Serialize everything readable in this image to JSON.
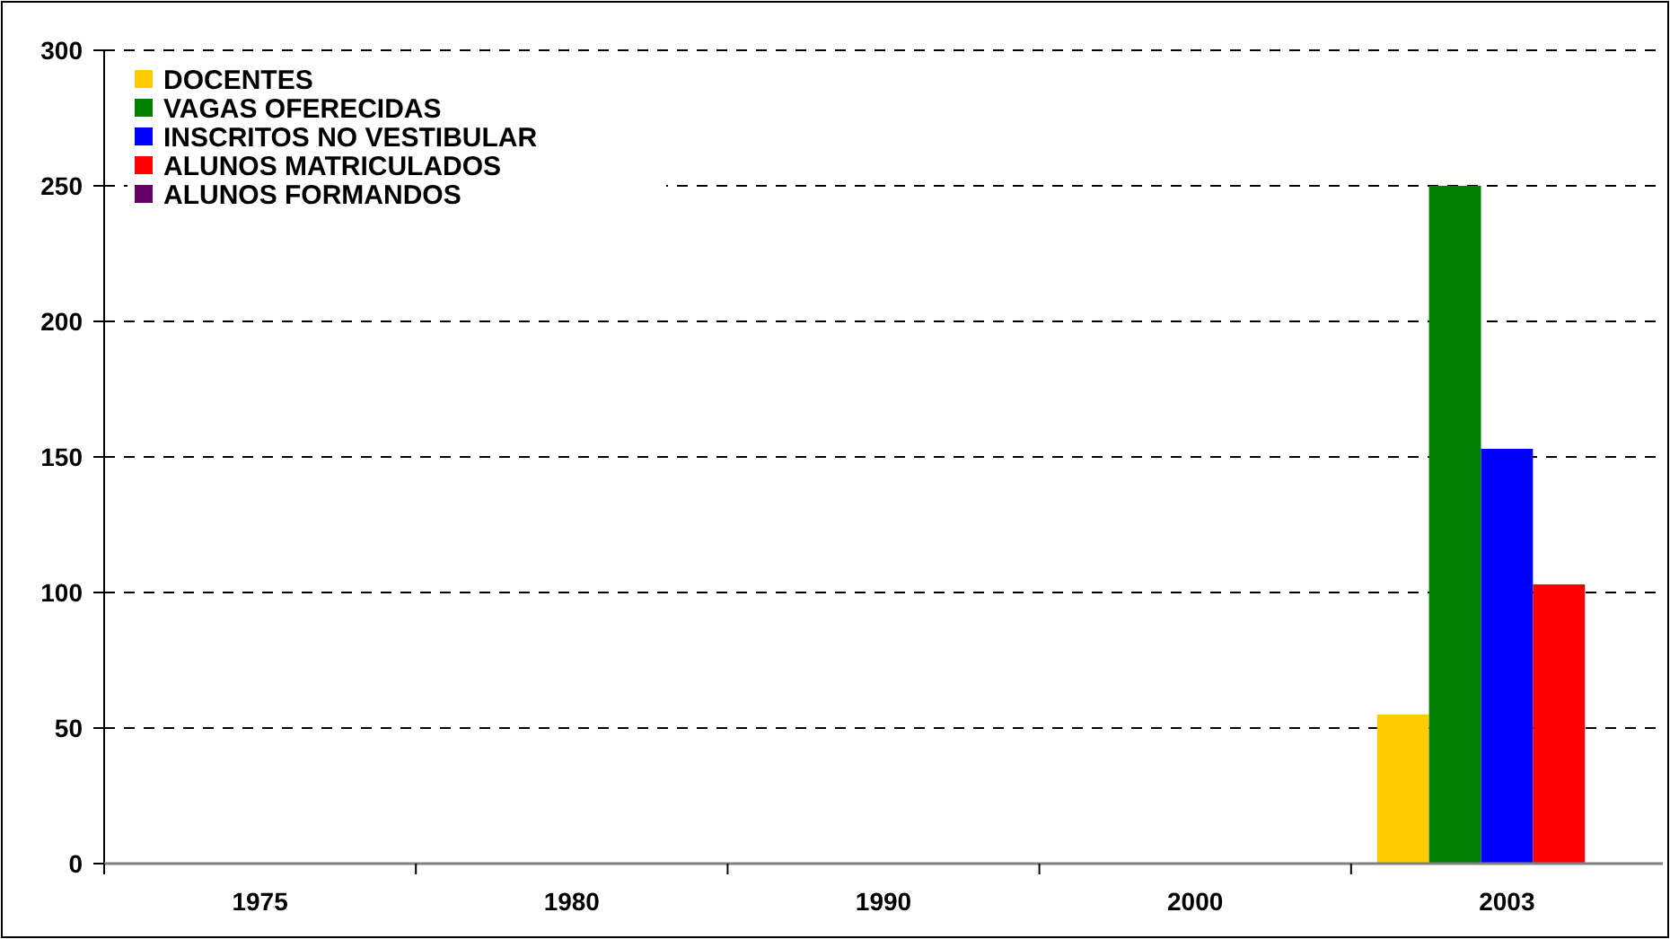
{
  "chart_data": {
    "type": "bar",
    "categories": [
      "1975",
      "1980",
      "1990",
      "2000",
      "2003"
    ],
    "series": [
      {
        "name": "DOCENTES",
        "color": "#ffcc00",
        "values": [
          null,
          null,
          null,
          null,
          55
        ]
      },
      {
        "name": "VAGAS OFERECIDAS",
        "color": "#008000",
        "values": [
          null,
          null,
          null,
          null,
          250
        ]
      },
      {
        "name": "INSCRITOS NO VESTIBULAR",
        "color": "#0000ff",
        "values": [
          null,
          null,
          null,
          null,
          153
        ]
      },
      {
        "name": "ALUNOS MATRICULADOS",
        "color": "#ff0000",
        "values": [
          null,
          null,
          null,
          null,
          103
        ]
      },
      {
        "name": "ALUNOS FORMANDOS",
        "color": "#660066",
        "values": [
          null,
          null,
          null,
          null,
          null
        ]
      }
    ],
    "ylim": [
      0,
      300
    ],
    "yticks": [
      0,
      50,
      100,
      150,
      200,
      250,
      300
    ],
    "grid": "y",
    "legend": "top left"
  }
}
